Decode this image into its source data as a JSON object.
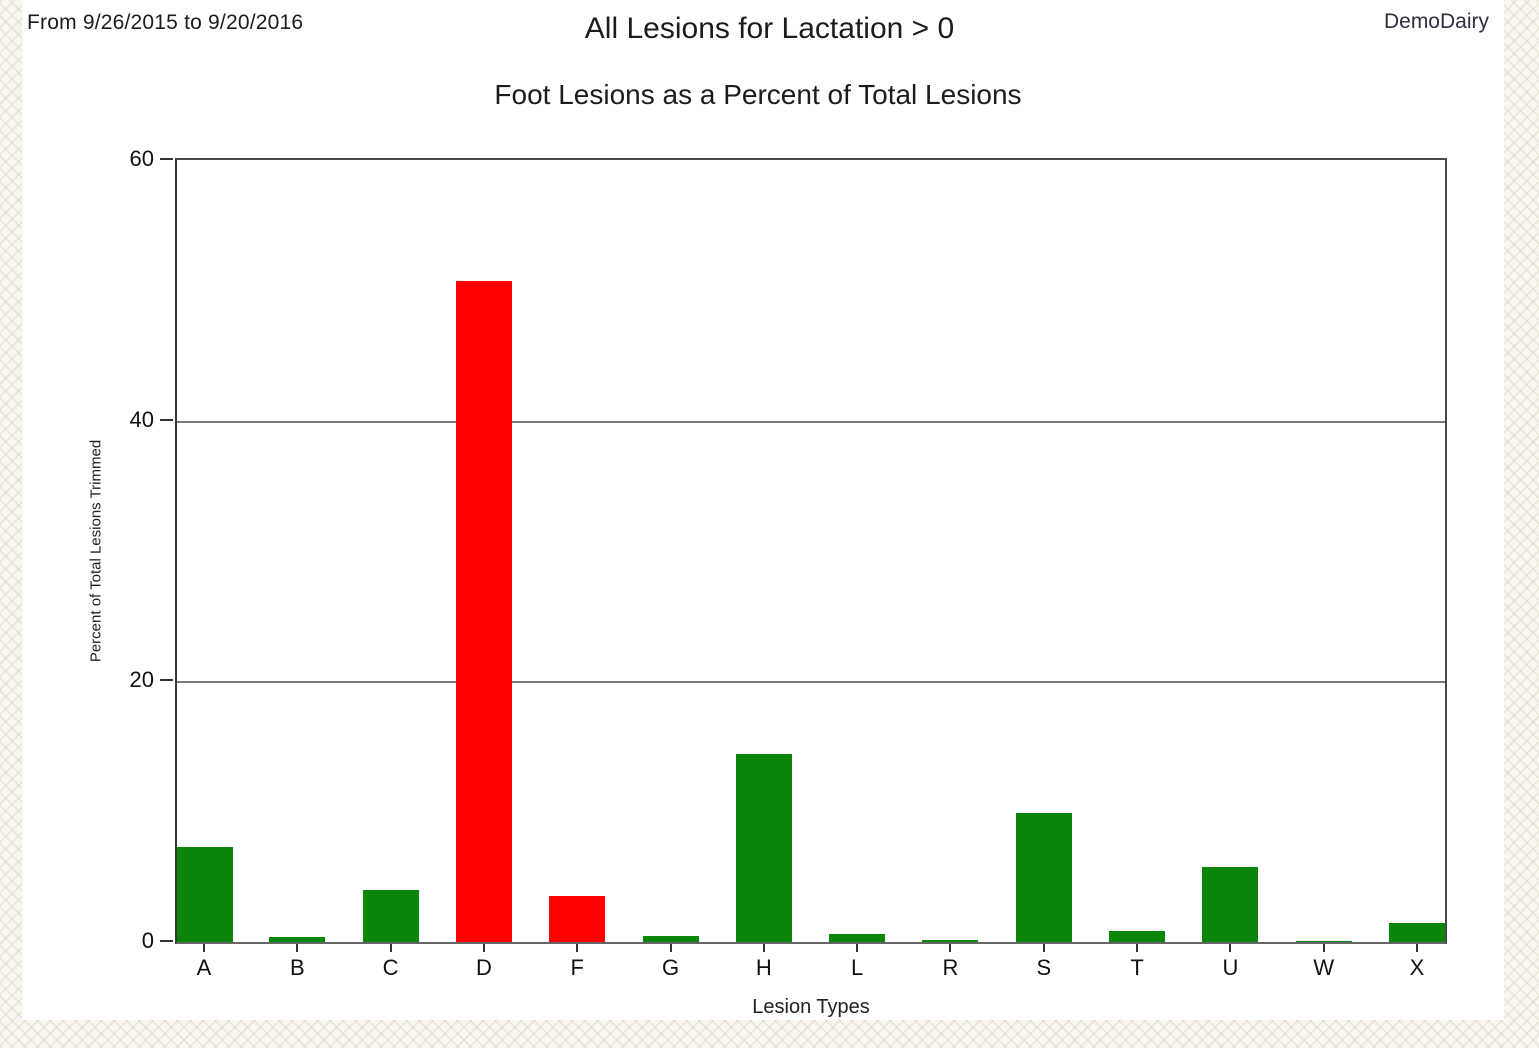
{
  "header": {
    "date_range": "From 9/26/2015 to 9/20/2016",
    "title": "All Lesions for Lactation > 0",
    "dairy_name": "DemoDairy"
  },
  "chart_data": {
    "type": "bar",
    "title": "Foot Lesions as a Percent of Total Lesions",
    "xlabel": "Lesion Types",
    "ylabel": "Percent of Total Lesions Trimmed",
    "ylim": [
      0,
      60
    ],
    "yticks": [
      0,
      20,
      40,
      60
    ],
    "grid": "horizontal",
    "legend": "none",
    "categories": [
      "A",
      "B",
      "C",
      "D",
      "F",
      "G",
      "H",
      "L",
      "R",
      "S",
      "T",
      "U",
      "W",
      "X"
    ],
    "values": [
      7.3,
      0.4,
      4.0,
      50.7,
      3.5,
      0.45,
      14.4,
      0.65,
      0.15,
      9.9,
      0.85,
      5.75,
      0.1,
      1.45
    ],
    "red_categories": [
      "D",
      "F"
    ],
    "colors": {
      "green_bar": "#0a870a",
      "red_bar": "#ff0000",
      "gridline": "#7a7a7a",
      "axis": "#3a3a3a"
    }
  }
}
